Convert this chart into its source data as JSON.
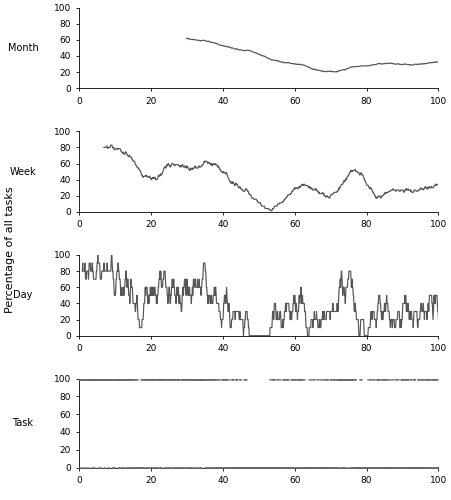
{
  "xlim": [
    0,
    100
  ],
  "ylim_main": [
    0,
    100
  ],
  "yticks": [
    0,
    20,
    40,
    60,
    80,
    100
  ],
  "xticks": [
    0,
    20,
    40,
    60,
    80,
    100
  ],
  "ylabel": "Percentage of all tasks",
  "subplot_labels": [
    "Month",
    "Week",
    "Day",
    "Task"
  ],
  "line_color": "#555555",
  "scatter_color": "#666666",
  "bg_color": "#ffffff",
  "figsize": [
    4.52,
    5.0
  ],
  "dpi": 100,
  "n_tasks": 1000,
  "seed": 12345,
  "month_window": 300,
  "week_window": 70,
  "day_window": 10
}
